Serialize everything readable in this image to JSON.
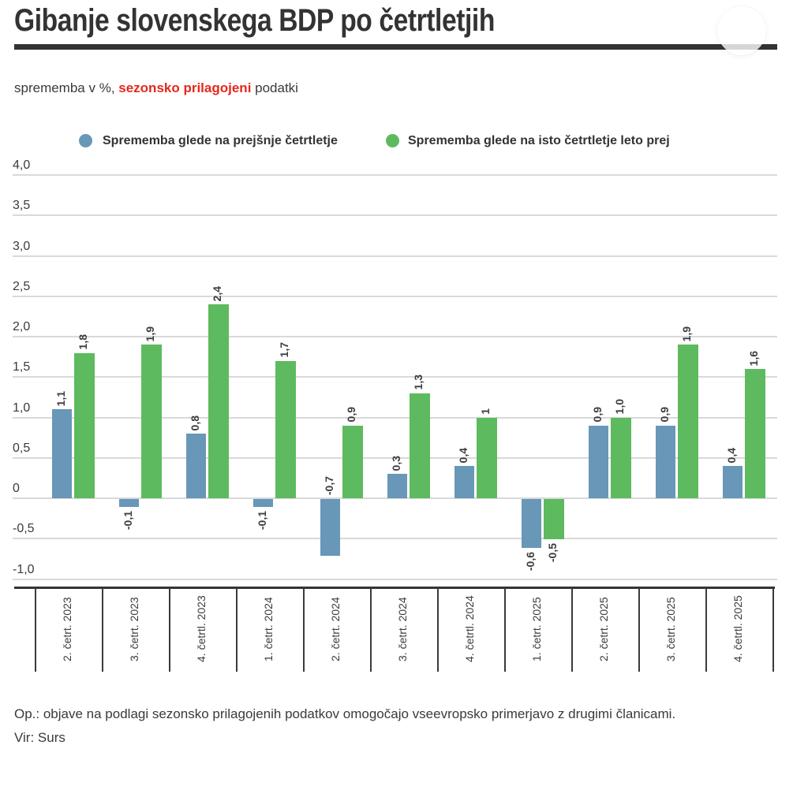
{
  "header": {
    "title": "Gibanje slovenskega BDP po četrtletjih",
    "subtitle_prefix": "sprememba v %, ",
    "subtitle_highlight": "sezonsko prilagojeni",
    "subtitle_suffix": " podatki"
  },
  "colors": {
    "accent_blue": "#6897b8",
    "accent_green": "#5eba5e",
    "highlight_red": "#e5281b",
    "axis_dark": "#333333",
    "gridline_gray": "#d9d9d9"
  },
  "chart_data": {
    "type": "bar",
    "title": "Gibanje slovenskega BDP po četrtletjih",
    "subtitle": "sprememba v %, sezonsko prilagojeni podatki",
    "categories": [
      "2. četrt. 2023",
      "3. četrt. 2023",
      "4. četrtl. 2023",
      "1. četrt. 2024",
      "2. četrt. 2024",
      "3. četrt. 2024",
      "4. četrtl. 2024",
      "1. četrt. 2025",
      "2. četrt. 2025",
      "3. četrt. 2025",
      "4. četrtl. 2025"
    ],
    "series": [
      {
        "name": "Sprememba glede na prejšnje četrtletje",
        "color": "#6897b8",
        "values": [
          1.1,
          -0.1,
          0.8,
          -0.1,
          -0.7,
          0.3,
          0.4,
          -0.6,
          0.9,
          0.9,
          0.4
        ],
        "labels": [
          "1,1",
          "-0,1",
          "0,8",
          "-0,1",
          "-0,7",
          "0,3",
          "0,4",
          "-0,6",
          "0,9",
          "0,9",
          "0,4"
        ],
        "label_pos": [
          "end",
          "end",
          "end",
          "end",
          "base",
          "end",
          "end",
          "end",
          "end",
          "end",
          "end"
        ]
      },
      {
        "name": "Sprememba glede na isto četrtletje leto prej",
        "color": "#5eba5e",
        "values": [
          1.8,
          1.9,
          2.4,
          1.7,
          0.9,
          1.3,
          1.0,
          -0.5,
          1.0,
          1.9,
          1.6
        ],
        "labels": [
          "1,8",
          "1,9",
          "2,4",
          "1,7",
          "0,9",
          "1,3",
          "1",
          "-0,5",
          "1,0",
          "1,9",
          "1,6"
        ],
        "label_pos": [
          "end",
          "end",
          "end",
          "end",
          "end",
          "end",
          "end",
          "end",
          "end",
          "end",
          "end"
        ]
      }
    ],
    "y_tick_labels": [
      "4,0",
      "3,5",
      "3,0",
      "2,5",
      "2,0",
      "1,5",
      "1,0",
      "0,5",
      "0",
      "-0,5",
      "-1,0"
    ],
    "y_tick_values": [
      4.0,
      3.5,
      3.0,
      2.5,
      2.0,
      1.5,
      1.0,
      0.5,
      0,
      -0.5,
      -1.0
    ],
    "ylim": [
      -1.0,
      4.0
    ],
    "xlabel": "",
    "ylabel": "sprememba v %",
    "grid": true,
    "legend_position": "top"
  },
  "footer": {
    "note": "Op.: objave na podlagi sezonsko prilagojenih podatkov omogočajo vseevropsko primerjavo z drugimi članicami.",
    "source": "Vir: Surs"
  }
}
